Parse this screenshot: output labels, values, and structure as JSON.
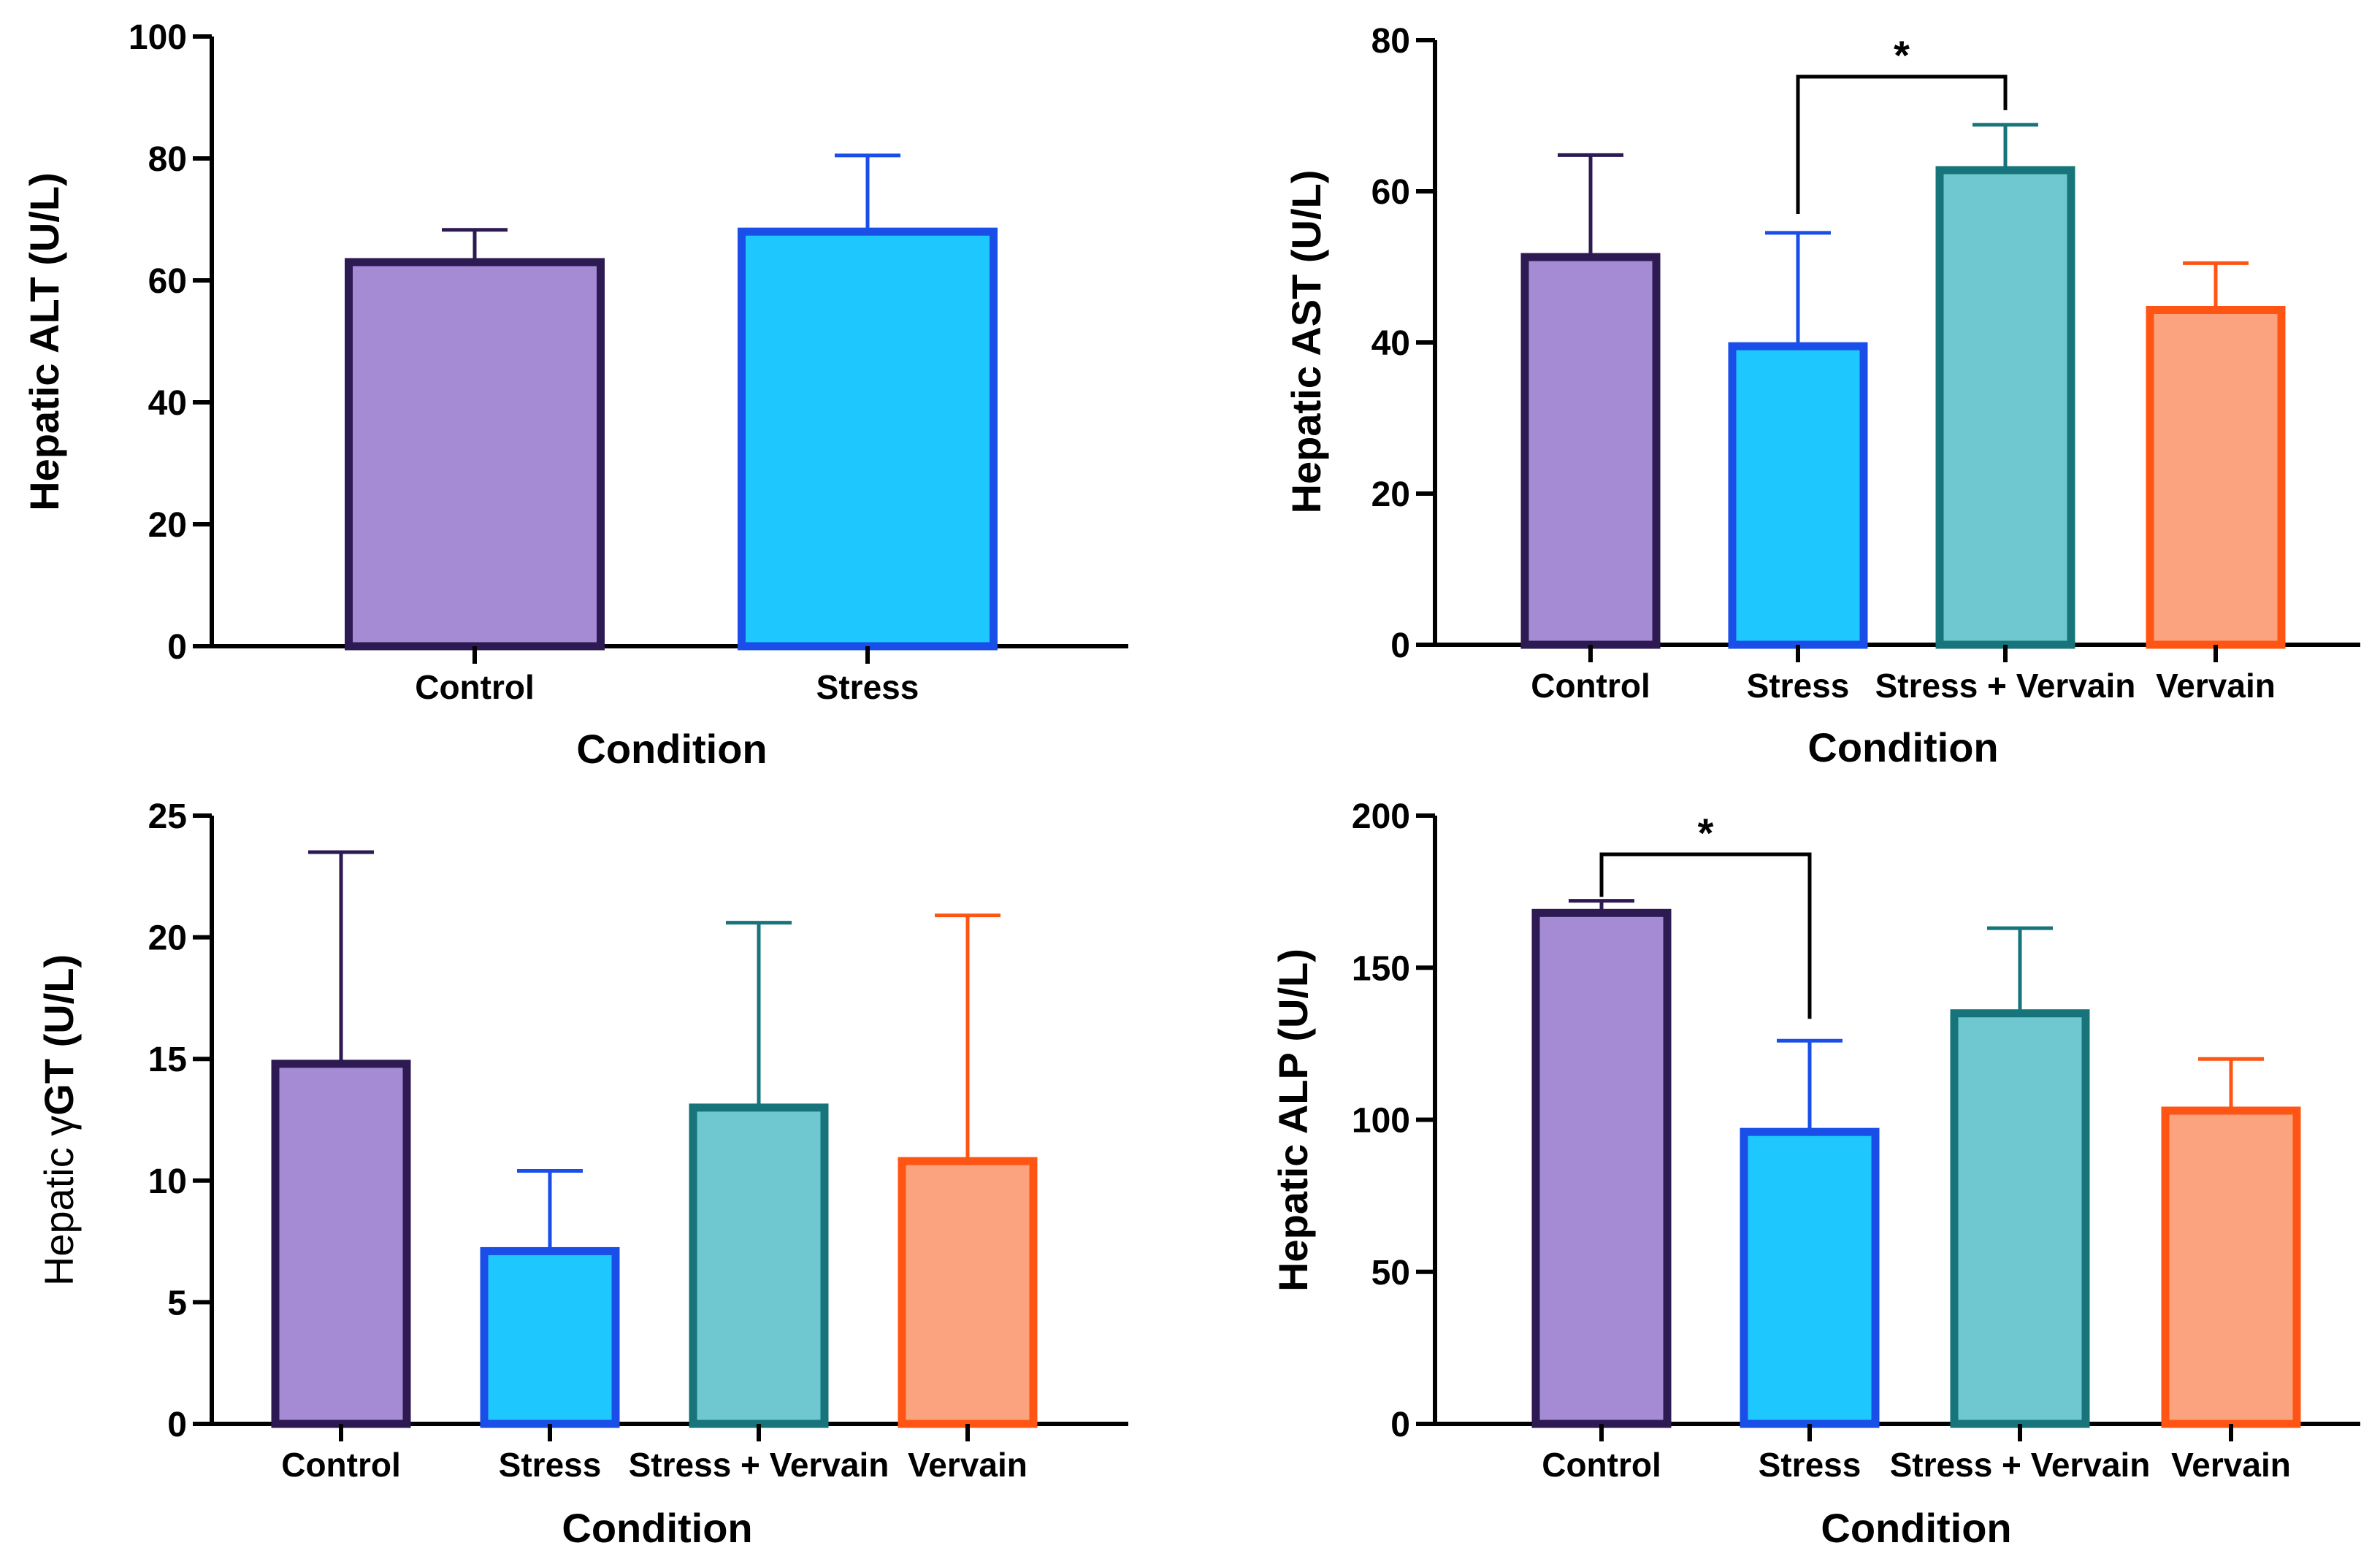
{
  "chart_data": [
    {
      "type": "bar",
      "title": "",
      "xlabel": "Condition",
      "ylabel": "Hepatic ALT (U/L)",
      "ylabel_parts": [
        {
          "text": "Hepatic ALT (U/L)",
          "bold": true
        }
      ],
      "ylim": [
        0,
        100
      ],
      "yticks": [
        0,
        20,
        40,
        60,
        80,
        100
      ],
      "categories": [
        "Control",
        "Stress"
      ],
      "values": [
        63,
        68
      ],
      "errors_upper": [
        68.3,
        80.5
      ],
      "fill_colors": [
        "#a58bd4",
        "#1ec8ff"
      ],
      "edge_colors": [
        "#2e1a52",
        "#1a4ee8"
      ],
      "significance": []
    },
    {
      "type": "bar",
      "title": "",
      "xlabel": "Condition",
      "ylabel": "Hepatic AST (U/L)",
      "ylabel_parts": [
        {
          "text": "Hepatic AST (U/L)",
          "bold": true
        }
      ],
      "ylim": [
        0,
        80
      ],
      "yticks": [
        0,
        20,
        40,
        60,
        80
      ],
      "categories": [
        "Control",
        "Stress",
        "Stress + Vervain",
        "Vervain"
      ],
      "values": [
        51.3,
        39.5,
        62.8,
        44.3
      ],
      "errors_upper": [
        64.8,
        54.5,
        68.8,
        50.5
      ],
      "fill_colors": [
        "#a58bd4",
        "#1ec8ff",
        "#6fc8cf",
        "#fba37e"
      ],
      "edge_colors": [
        "#2e1a52",
        "#1a4ee8",
        "#16747a",
        "#ff5514"
      ],
      "significance": [
        {
          "from": 1,
          "to": 2,
          "label": "*"
        }
      ]
    },
    {
      "type": "bar",
      "title": "",
      "xlabel": "Condition",
      "ylabel": "Hepatic γGT (U/L)",
      "ylabel_parts": [
        {
          "text": "Hepatic γ",
          "bold": false
        },
        {
          "text": "GT (U/L)",
          "bold": true
        }
      ],
      "ylim": [
        0,
        25
      ],
      "yticks": [
        0,
        5,
        10,
        15,
        20,
        25
      ],
      "categories": [
        "Control",
        "Stress",
        "Stress + Vervain",
        "Vervain"
      ],
      "values": [
        14.8,
        7.1,
        13.0,
        10.8
      ],
      "errors_upper": [
        23.5,
        10.4,
        20.6,
        20.9
      ],
      "fill_colors": [
        "#a58bd4",
        "#1ec8ff",
        "#6fc8cf",
        "#fba37e"
      ],
      "edge_colors": [
        "#2e1a52",
        "#1a4ee8",
        "#16747a",
        "#ff5514"
      ],
      "significance": []
    },
    {
      "type": "bar",
      "title": "",
      "xlabel": "Condition",
      "ylabel": "Hepatic ALP (U/L)",
      "ylabel_parts": [
        {
          "text": "Hepatic ALP (U/L)",
          "bold": true
        }
      ],
      "ylim": [
        0,
        200
      ],
      "yticks": [
        0,
        50,
        100,
        150,
        200
      ],
      "categories": [
        "Control",
        "Stress",
        "Stress + Vervain",
        "Vervain"
      ],
      "values": [
        168,
        96,
        135,
        103
      ],
      "errors_upper": [
        172,
        126,
        163,
        120
      ],
      "fill_colors": [
        "#a58bd4",
        "#1ec8ff",
        "#6fc8cf",
        "#fba37e"
      ],
      "edge_colors": [
        "#2e1a52",
        "#1a4ee8",
        "#16747a",
        "#ff5514"
      ],
      "significance": [
        {
          "from": 0,
          "to": 1,
          "label": "*"
        }
      ]
    }
  ]
}
